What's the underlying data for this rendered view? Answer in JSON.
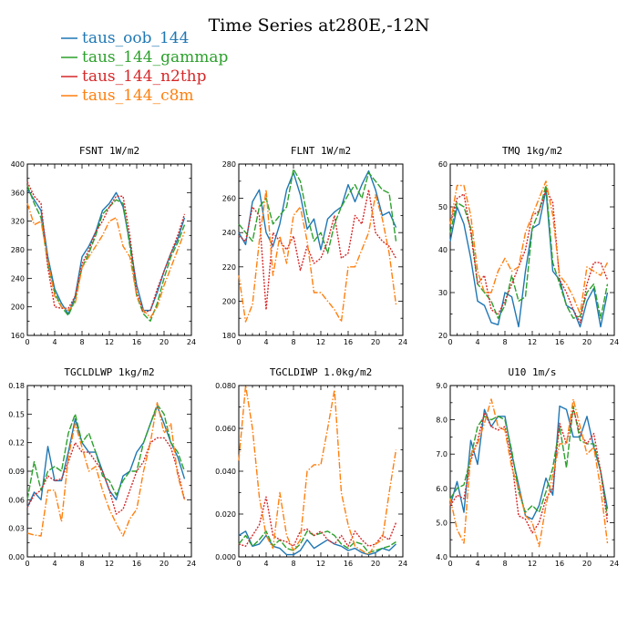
{
  "title": "Time Series at280E,-12N",
  "legend": [
    {
      "name": "taus_oob_144",
      "color": "#1f77b4",
      "dash": ""
    },
    {
      "name": "taus_144_gammap",
      "color": "#2ca02c",
      "dash": "7,2"
    },
    {
      "name": "taus_144_n2thp",
      "color": "#d62728",
      "dash": "2,1.5"
    },
    {
      "name": "taus_144_c8m",
      "color": "#ff7f0e",
      "dash": "7,2,1.5,2"
    }
  ],
  "chart_data": [
    {
      "type": "line",
      "title": "FSNT  1W/m2",
      "xlim": [
        0,
        24
      ],
      "ylim": [
        160,
        400
      ],
      "xticks": [
        "0",
        "4",
        "8",
        "12",
        "16",
        "20",
        "24"
      ],
      "yticks": [
        "160",
        "200",
        "240",
        "280",
        "320",
        "360",
        "400"
      ],
      "x": [
        0,
        1,
        2,
        3,
        4,
        5,
        6,
        7,
        8,
        9,
        10,
        11,
        12,
        13,
        14,
        15,
        16,
        17,
        18,
        19,
        20,
        21,
        22,
        23
      ],
      "series": [
        {
          "name": "taus_oob_144",
          "values": [
            365,
            350,
            335,
            270,
            225,
            205,
            190,
            215,
            270,
            285,
            305,
            335,
            345,
            360,
            340,
            290,
            230,
            195,
            195,
            220,
            250,
            275,
            295,
            325
          ]
        },
        {
          "name": "taus_144_gammap",
          "values": [
            370,
            345,
            325,
            260,
            220,
            200,
            188,
            210,
            255,
            275,
            300,
            330,
            340,
            350,
            345,
            285,
            215,
            190,
            180,
            205,
            240,
            270,
            290,
            315
          ]
        },
        {
          "name": "taus_144_n2thp",
          "values": [
            375,
            355,
            345,
            255,
            200,
            198,
            198,
            215,
            260,
            280,
            305,
            320,
            340,
            355,
            355,
            300,
            220,
            192,
            195,
            225,
            250,
            275,
            300,
            330
          ]
        },
        {
          "name": "taus_144_c8m",
          "values": [
            345,
            315,
            320,
            265,
            215,
            200,
            195,
            205,
            255,
            270,
            285,
            300,
            320,
            325,
            285,
            270,
            215,
            195,
            185,
            200,
            230,
            255,
            280,
            305
          ]
        }
      ]
    },
    {
      "type": "line",
      "title": "FLNT  1W/m2",
      "xlim": [
        0,
        24
      ],
      "ylim": [
        180,
        280
      ],
      "xticks": [
        "0",
        "4",
        "8",
        "12",
        "16",
        "20",
        "24"
      ],
      "yticks": [
        "180",
        "200",
        "220",
        "240",
        "260",
        "280"
      ],
      "x": [
        0,
        1,
        2,
        3,
        4,
        5,
        6,
        7,
        8,
        9,
        10,
        11,
        12,
        13,
        14,
        15,
        16,
        17,
        18,
        19,
        20,
        21,
        22,
        23
      ],
      "series": [
        {
          "name": "taus_oob_144",
          "values": [
            240,
            233,
            258,
            265,
            240,
            232,
            245,
            265,
            275,
            262,
            242,
            248,
            230,
            248,
            252,
            255,
            268,
            258,
            268,
            276,
            265,
            250,
            252,
            243
          ]
        },
        {
          "name": "taus_144_gammap",
          "values": [
            245,
            240,
            235,
            255,
            260,
            245,
            250,
            255,
            277,
            270,
            250,
            235,
            240,
            228,
            245,
            255,
            262,
            268,
            260,
            275,
            270,
            265,
            263,
            235
          ]
        },
        {
          "name": "taus_144_n2thp",
          "values": [
            238,
            235,
            255,
            250,
            195,
            240,
            235,
            230,
            238,
            218,
            232,
            222,
            225,
            235,
            250,
            225,
            228,
            250,
            245,
            265,
            240,
            235,
            232,
            225
          ]
        },
        {
          "name": "taus_144_c8m",
          "values": [
            215,
            188,
            198,
            235,
            265,
            215,
            238,
            222,
            250,
            255,
            235,
            205,
            205,
            200,
            195,
            188,
            220,
            220,
            230,
            240,
            262,
            248,
            228,
            198
          ]
        }
      ]
    },
    {
      "type": "line",
      "title": "TMQ  1kg/m2",
      "xlim": [
        0,
        24
      ],
      "ylim": [
        20,
        60
      ],
      "xticks": [
        "0",
        "4",
        "8",
        "12",
        "16",
        "20",
        "24"
      ],
      "yticks": [
        "20",
        "30",
        "40",
        "50",
        "60"
      ],
      "x": [
        0,
        1,
        2,
        3,
        4,
        5,
        6,
        7,
        8,
        9,
        10,
        11,
        12,
        13,
        14,
        15,
        16,
        17,
        18,
        19,
        20,
        21,
        22,
        23
      ],
      "series": [
        {
          "name": "taus_oob_144",
          "values": [
            42,
            50,
            46,
            38,
            28,
            27,
            23,
            22.5,
            30,
            29,
            22,
            35,
            45,
            46,
            54,
            35,
            33,
            27,
            26,
            22,
            28,
            31,
            22,
            30
          ]
        },
        {
          "name": "taus_144_gammap",
          "values": [
            44,
            51,
            50,
            45,
            32,
            30,
            28,
            24,
            27,
            34,
            28,
            29,
            45,
            49,
            55,
            37,
            32,
            27,
            24,
            24.5,
            30,
            32,
            24,
            32
          ]
        },
        {
          "name": "taus_144_n2thp",
          "values": [
            46,
            52,
            53,
            44,
            32,
            34,
            26,
            25,
            28,
            32,
            36,
            40,
            48,
            49,
            54,
            51,
            33,
            30,
            26,
            23,
            32,
            37,
            37,
            33
          ]
        },
        {
          "name": "taus_144_c8m",
          "values": [
            46,
            55,
            55,
            48,
            35,
            30,
            30,
            35,
            38,
            35,
            36,
            44,
            48,
            52,
            56,
            48,
            34,
            32,
            29,
            25,
            36,
            35,
            34,
            37
          ]
        }
      ]
    },
    {
      "type": "line",
      "title": "TGCLDLWP  1kg/m2",
      "xlim": [
        0,
        24
      ],
      "ylim": [
        0,
        0.18
      ],
      "xticks": [
        "0",
        "4",
        "8",
        "12",
        "16",
        "20",
        "24"
      ],
      "yticks": [
        "0.00",
        "0.03",
        "0.06",
        "0.09",
        "0.12",
        "0.15",
        "0.18"
      ],
      "x": [
        0,
        1,
        2,
        3,
        4,
        5,
        6,
        7,
        8,
        9,
        10,
        11,
        12,
        13,
        14,
        15,
        16,
        17,
        18,
        19,
        20,
        21,
        22,
        23
      ],
      "series": [
        {
          "name": "taus_oob_144",
          "values": [
            0.052,
            0.068,
            0.06,
            0.116,
            0.08,
            0.08,
            0.11,
            0.145,
            0.12,
            0.11,
            0.11,
            0.09,
            0.07,
            0.06,
            0.085,
            0.09,
            0.11,
            0.12,
            0.14,
            0.158,
            0.14,
            0.12,
            0.105,
            0.082
          ]
        },
        {
          "name": "taus_144_gammap",
          "values": [
            0.06,
            0.1,
            0.07,
            0.09,
            0.095,
            0.09,
            0.13,
            0.15,
            0.12,
            0.13,
            0.11,
            0.085,
            0.08,
            0.065,
            0.08,
            0.09,
            0.09,
            0.12,
            0.14,
            0.16,
            0.15,
            0.12,
            0.11,
            0.09
          ]
        },
        {
          "name": "taus_144_n2thp",
          "values": [
            0.052,
            0.065,
            0.07,
            0.085,
            0.08,
            0.082,
            0.1,
            0.12,
            0.11,
            0.11,
            0.1,
            0.09,
            0.07,
            0.045,
            0.05,
            0.07,
            0.09,
            0.1,
            0.12,
            0.125,
            0.125,
            0.115,
            0.09,
            0.06
          ]
        },
        {
          "name": "taus_144_c8m",
          "values": [
            0.025,
            0.023,
            0.022,
            0.07,
            0.07,
            0.037,
            0.105,
            0.14,
            0.115,
            0.09,
            0.095,
            0.07,
            0.05,
            0.035,
            0.022,
            0.04,
            0.05,
            0.09,
            0.12,
            0.162,
            0.13,
            0.14,
            0.085,
            0.06
          ]
        }
      ]
    },
    {
      "type": "line",
      "title": "TGCLDIWP  1.0kg/m2",
      "xlim": [
        0,
        24
      ],
      "ylim": [
        0,
        0.08
      ],
      "xticks": [
        "0",
        "4",
        "8",
        "12",
        "16",
        "20",
        "24"
      ],
      "yticks": [
        "0.000",
        "0.020",
        "0.040",
        "0.060",
        "0.080"
      ],
      "x": [
        0,
        1,
        2,
        3,
        4,
        5,
        6,
        7,
        8,
        9,
        10,
        11,
        12,
        13,
        14,
        15,
        16,
        17,
        18,
        19,
        20,
        21,
        22,
        23
      ],
      "series": [
        {
          "name": "taus_oob_144",
          "values": [
            0.01,
            0.012,
            0.005,
            0.006,
            0.01,
            0.005,
            0.004,
            0.001,
            0.001,
            0.003,
            0.008,
            0.004,
            0.006,
            0.008,
            0.006,
            0.005,
            0.003,
            0.004,
            0.002,
            0.001,
            0.002,
            0.004,
            0.003,
            0.006
          ]
        },
        {
          "name": "taus_144_gammap",
          "values": [
            0.006,
            0.01,
            0.005,
            0.008,
            0.012,
            0.005,
            0.008,
            0.004,
            0.003,
            0.006,
            0.012,
            0.01,
            0.011,
            0.012,
            0.01,
            0.006,
            0.004,
            0.007,
            0.006,
            0.002,
            0.003,
            0.004,
            0.005,
            0.007
          ]
        },
        {
          "name": "taus_144_n2thp",
          "values": [
            0.006,
            0.005,
            0.01,
            0.015,
            0.028,
            0.01,
            0.008,
            0.007,
            0.005,
            0.012,
            0.013,
            0.01,
            0.012,
            0.008,
            0.006,
            0.01,
            0.005,
            0.012,
            0.008,
            0.005,
            0.006,
            0.01,
            0.008,
            0.016
          ]
        },
        {
          "name": "taus_144_c8m",
          "values": [
            0.045,
            0.08,
            0.06,
            0.028,
            0.01,
            0.004,
            0.03,
            0.01,
            0.003,
            0.008,
            0.04,
            0.043,
            0.043,
            0.06,
            0.078,
            0.03,
            0.015,
            0.005,
            0.003,
            0.001,
            0.006,
            0.008,
            0.03,
            0.05
          ]
        }
      ]
    },
    {
      "type": "line",
      "title": "U10  1m/s",
      "xlim": [
        0,
        24
      ],
      "ylim": [
        4,
        9
      ],
      "xticks": [
        "0",
        "4",
        "8",
        "12",
        "16",
        "20",
        "24"
      ],
      "yticks": [
        "4.0",
        "5.0",
        "6.0",
        "7.0",
        "8.0",
        "9.0"
      ],
      "x": [
        0,
        1,
        2,
        3,
        4,
        5,
        6,
        7,
        8,
        9,
        10,
        11,
        12,
        13,
        14,
        15,
        16,
        17,
        18,
        19,
        20,
        21,
        22,
        23
      ],
      "series": [
        {
          "name": "taus_oob_144",
          "values": [
            5.5,
            6.2,
            5.3,
            7.4,
            6.7,
            8.3,
            7.8,
            8.1,
            8.1,
            7.0,
            6.1,
            5.2,
            5.1,
            5.5,
            6.3,
            5.8,
            8.4,
            8.3,
            7.5,
            7.5,
            8.1,
            7.2,
            6.5,
            5.4
          ]
        },
        {
          "name": "taus_144_gammap",
          "values": [
            5.7,
            6.0,
            6.1,
            6.9,
            7.8,
            8.1,
            8.0,
            8.1,
            8.0,
            7.1,
            5.9,
            5.3,
            5.5,
            5.3,
            5.9,
            6.6,
            7.8,
            6.6,
            8.4,
            7.4,
            7.3,
            7.3,
            6.5,
            5.2
          ]
        },
        {
          "name": "taus_144_n2thp",
          "values": [
            5.5,
            5.8,
            5.7,
            6.8,
            7.4,
            8.2,
            7.8,
            7.7,
            7.8,
            6.8,
            5.2,
            5.1,
            4.7,
            5.0,
            5.7,
            6.0,
            7.9,
            7.3,
            8.3,
            7.6,
            7.3,
            7.6,
            6.5,
            5.0
          ]
        },
        {
          "name": "taus_144_c8m",
          "values": [
            5.7,
            4.8,
            4.4,
            7.0,
            7.3,
            7.9,
            8.6,
            7.8,
            7.7,
            6.6,
            6.0,
            5.2,
            5.0,
            4.3,
            5.5,
            6.4,
            7.3,
            7.3,
            8.6,
            7.8,
            7.0,
            7.2,
            6.0,
            4.4
          ]
        }
      ]
    }
  ]
}
